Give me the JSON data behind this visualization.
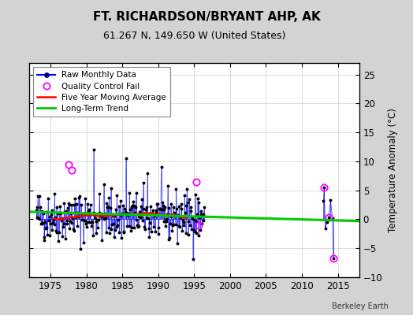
{
  "title": "FT. RICHARDSON/BRYANT AHP, AK",
  "subtitle": "61.267 N, 149.650 W (United States)",
  "ylabel": "Temperature Anomaly (°C)",
  "watermark": "Berkeley Earth",
  "xlim": [
    1972,
    2018
  ],
  "ylim": [
    -10,
    27
  ],
  "yticks": [
    -10,
    -5,
    0,
    5,
    10,
    15,
    20,
    25
  ],
  "xticks": [
    1975,
    1980,
    1985,
    1990,
    1995,
    2000,
    2005,
    2010,
    2015
  ],
  "bg_color": "#d3d3d3",
  "plot_bg_color": "#ffffff",
  "raw_color": "#0000ff",
  "raw_marker_color": "#000000",
  "qc_color": "#ff00ff",
  "moving_avg_color": "#ff0000",
  "trend_color": "#00cc00",
  "seed": 42,
  "qc_x": [
    1977.5,
    1978.0,
    1995.3,
    1995.6,
    2013.1,
    2013.75,
    2014.4
  ],
  "qc_y": [
    9.5,
    8.5,
    6.5,
    -1.0,
    5.5,
    0.3,
    -6.8
  ],
  "late_x": [
    2013.0,
    2013.1,
    2013.25,
    2013.5,
    2013.75,
    2014.0,
    2014.25,
    2014.4
  ],
  "late_y": [
    3.2,
    5.5,
    -1.5,
    -0.5,
    0.3,
    3.3,
    0.2,
    -6.8
  ],
  "trend_x": [
    1972,
    2018
  ],
  "trend_y": [
    1.3,
    -0.3
  ]
}
